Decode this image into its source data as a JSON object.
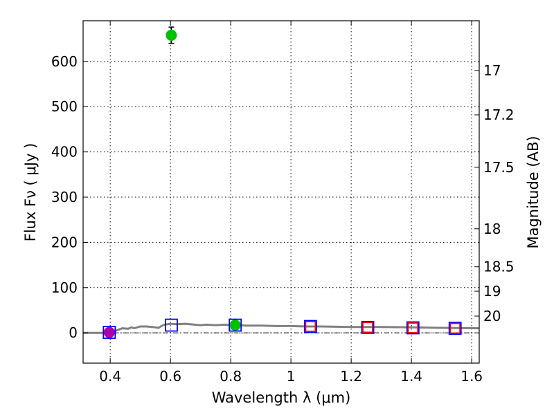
{
  "chart_data": {
    "type": "scatter",
    "title": "",
    "xlabel": "Wavelength  λ (μm)",
    "ylabel": "Flux  Fν  ( μJy )",
    "y2label": "Magnitude (AB)",
    "xlim": [
      0.31,
      1.625
    ],
    "ylim": [
      -67,
      690
    ],
    "grid": true,
    "x_ticks": [
      0.4,
      0.6,
      0.8,
      1.0,
      1.2,
      1.4,
      1.6
    ],
    "x_tick_labels": [
      "0.4",
      "0.6",
      "0.8",
      "1",
      "1.2",
      "1.4",
      "1.6"
    ],
    "y_ticks": [
      0,
      100,
      200,
      300,
      400,
      500,
      600
    ],
    "y_tick_labels": [
      "0",
      "100",
      "200",
      "300",
      "400",
      "500",
      "600"
    ],
    "y2_ticks": [
      {
        "label": "17",
        "flux": 580
      },
      {
        "label": "17.2",
        "flux": 482
      },
      {
        "label": "17.5",
        "flux": 366
      },
      {
        "label": "18",
        "flux": 230
      },
      {
        "label": "18.5",
        "flux": 146
      },
      {
        "label": "19",
        "flux": 92
      },
      {
        "label": "20",
        "flux": 37
      }
    ],
    "model_sed": {
      "color": "#808080",
      "x": [
        0.31,
        0.38,
        0.4,
        0.42,
        0.44,
        0.46,
        0.47,
        0.48,
        0.5,
        0.52,
        0.54,
        0.55,
        0.56,
        0.57,
        0.58,
        0.6,
        0.62,
        0.65,
        0.68,
        0.7,
        0.72,
        0.75,
        0.78,
        0.8,
        0.83,
        0.85,
        0.9,
        0.95,
        1.0,
        1.05,
        1.1,
        1.2,
        1.3,
        1.4,
        1.5,
        1.625
      ],
      "y": [
        0,
        0,
        2,
        5,
        10,
        9,
        12,
        10,
        14,
        14,
        13,
        12,
        11,
        15,
        18,
        20,
        19,
        20,
        18,
        17,
        18,
        17,
        18,
        17,
        17,
        16,
        16,
        15,
        15,
        14,
        14,
        13,
        13,
        12,
        11,
        10
      ]
    },
    "series": [
      {
        "marker": "circle",
        "color": "#00c000",
        "points": [
          {
            "x": 0.603,
            "y": 658,
            "err": 18
          },
          {
            "x": 0.815,
            "y": 17,
            "err": 3
          }
        ]
      },
      {
        "marker": "circle",
        "color": "#aa00aa",
        "points": [
          {
            "x": 0.397,
            "y": 1,
            "err": 2
          }
        ]
      },
      {
        "marker": "square",
        "color": "#0000ff",
        "points": [
          {
            "x": 0.397,
            "y": 1
          },
          {
            "x": 0.603,
            "y": 17
          },
          {
            "x": 0.815,
            "y": 17
          },
          {
            "x": 1.065,
            "y": 14
          },
          {
            "x": 1.255,
            "y": 12
          },
          {
            "x": 1.405,
            "y": 11
          },
          {
            "x": 1.545,
            "y": 10
          }
        ]
      },
      {
        "marker": "square",
        "color": "#ff0000",
        "points": [
          {
            "x": 1.065,
            "y": 14
          },
          {
            "x": 1.255,
            "y": 12
          },
          {
            "x": 1.405,
            "y": 11
          },
          {
            "x": 1.545,
            "y": 10
          }
        ]
      }
    ]
  }
}
